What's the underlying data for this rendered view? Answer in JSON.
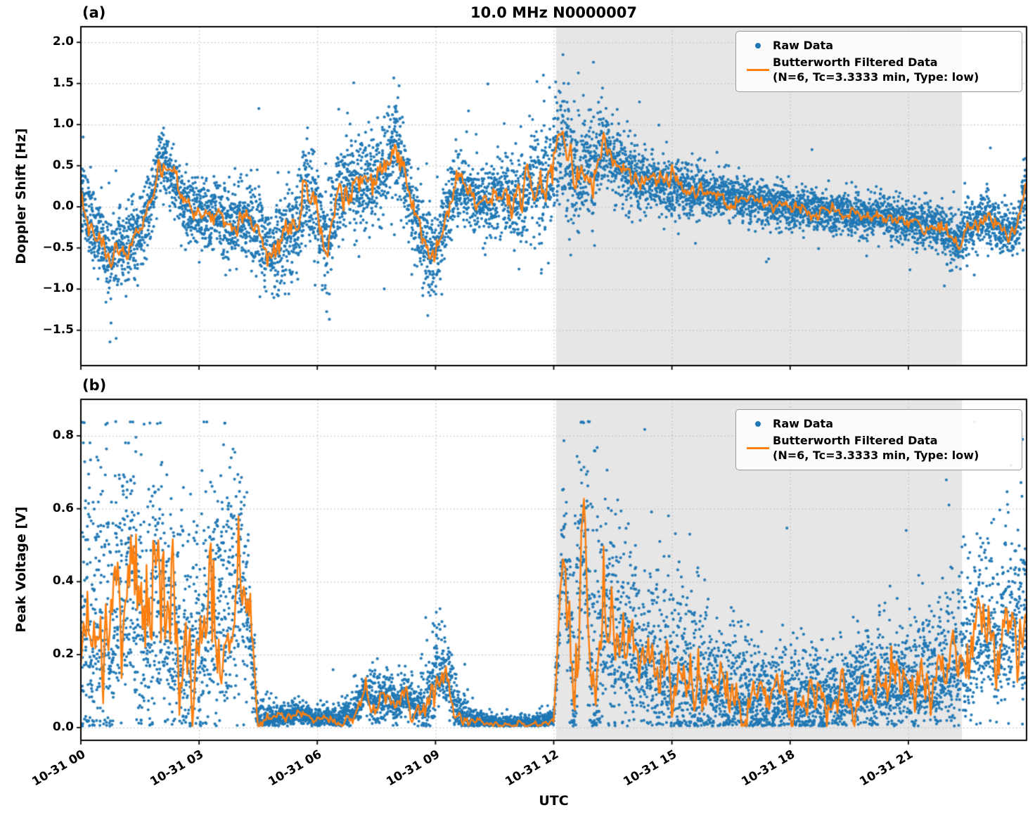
{
  "figure": {
    "background": "#ffffff"
  },
  "colors": {
    "raw": "#1f77b4",
    "filtered": "#ff7f0e",
    "shade": "#e6e6e6",
    "grid": "#c0c0c0",
    "spine": "#000000"
  },
  "legend": {
    "raw_label": "Raw Data",
    "filtered_label": "Butterworth Filtered Data",
    "filtered_params": "(N=6, Tc=3.3333 min, Type: low)"
  },
  "x_axis": {
    "date": "10-31",
    "range_hours": [
      0,
      24
    ],
    "tick_hours": [
      0,
      3,
      6,
      9,
      12,
      15,
      18,
      21
    ],
    "tick_labels": [
      "10-31 00",
      "10-31 03",
      "10-31 06",
      "10-31 09",
      "10-31 12",
      "10-31 15",
      "10-31 18",
      "10-31 21"
    ]
  },
  "shaded_region_hours": [
    12.06,
    22.36
  ],
  "chart_data": [
    {
      "panel_label": "(a)",
      "type": "scatter",
      "title": "10.0 MHz N0000007",
      "ylabel": "Doppler Shift [Hz]",
      "ylim": [
        -1.93,
        2.19
      ],
      "clip": [
        -1.8,
        2.03
      ],
      "ytick_values": [
        2.0,
        1.5,
        1.0,
        0.5,
        0.0,
        -0.5,
        -1.0,
        -1.5
      ],
      "ytick_labels": [
        "2.0",
        "1.5",
        "1.0",
        "0.5",
        "0.0",
        "−0.5",
        "−1.0",
        "−1.5"
      ],
      "series": [
        {
          "name": "Raw Data",
          "style": "scatter",
          "color": "#1f77b4"
        },
        {
          "name": "Butterworth Filtered Data (N=6, Tc=3.3333 min, Type: low)",
          "style": "line",
          "color": "#ff7f0e"
        }
      ],
      "x_start": 0,
      "x_step": 0.25,
      "filtered_values": [
        0.15,
        -0.2,
        -0.45,
        -0.65,
        -0.5,
        -0.45,
        -0.3,
        -0.05,
        0.55,
        0.45,
        0.15,
        0,
        -0.05,
        -0.15,
        -0.08,
        -0.25,
        -0.2,
        -0.1,
        -0.3,
        -0.55,
        -0.45,
        -0.3,
        -0.2,
        0.3,
        -0.1,
        -0.55,
        0.2,
        0.3,
        0.2,
        0.3,
        0.35,
        0.5,
        0.78,
        0.3,
        -0.15,
        -0.5,
        -0.6,
        -0.1,
        0.25,
        0.2,
        0.1,
        0.05,
        0.1,
        0.15,
        0.1,
        0.15,
        0.25,
        0.3,
        0.5,
        0.8,
        0.35,
        0.5,
        0.4,
        0.8,
        0.55,
        0.45,
        0.38,
        0.32,
        0.3,
        0.28,
        0.25,
        0.22,
        0.2,
        0.18,
        0.15,
        0.12,
        0.1,
        0.1,
        0.08,
        0.05,
        0.05,
        0.02,
        0,
        0,
        -0.02,
        -0.05,
        -0.05,
        -0.05,
        -0.08,
        -0.1,
        -0.1,
        -0.1,
        -0.12,
        -0.15,
        -0.15,
        -0.18,
        -0.2,
        -0.25,
        -0.35,
        -0.45,
        -0.25,
        -0.2,
        -0.1,
        -0.25,
        -0.3,
        -0.25,
        0.25
      ],
      "raw_spread_step": 1,
      "raw_spread": [
        0.25,
        0.25,
        0.18,
        0.2,
        0.22,
        0.3,
        0.3,
        0.25,
        0.3,
        0.25,
        0.2,
        0.25,
        0.4,
        0.3,
        0.2,
        0.17,
        0.14,
        0.13,
        0.12,
        0.12,
        0.12,
        0.13,
        0.15,
        0.15,
        0.15
      ],
      "skew_up": 1.0,
      "line_wiggle": 0.3
    },
    {
      "panel_label": "(b)",
      "type": "scatter",
      "xlabel": "UTC",
      "ylabel": "Peak Voltage [V]",
      "ylim": [
        -0.035,
        0.9
      ],
      "clip": [
        0.004,
        0.84
      ],
      "ytick_values": [
        0.8,
        0.6,
        0.4,
        0.2,
        0.0
      ],
      "ytick_labels": [
        "0.8",
        "0.6",
        "0.4",
        "0.2",
        "0.0"
      ],
      "series": [
        {
          "name": "Raw Data",
          "style": "scatter",
          "color": "#1f77b4"
        },
        {
          "name": "Butterworth Filtered Data (N=6, Tc=3.3333 min, Type: low)",
          "style": "line",
          "color": "#ff7f0e"
        }
      ],
      "x_start": 0,
      "x_step": 0.25,
      "filtered_values": [
        0.3,
        0.22,
        0.3,
        0.2,
        0.33,
        0.4,
        0.28,
        0.25,
        0.36,
        0.28,
        0.17,
        0.23,
        0.18,
        0.26,
        0.32,
        0.3,
        0.4,
        0.3,
        0.02,
        0.02,
        0.03,
        0.03,
        0.04,
        0.03,
        0.02,
        0.03,
        0.02,
        0.03,
        0.05,
        0.1,
        0.06,
        0.09,
        0.05,
        0.09,
        0.05,
        0.06,
        0.14,
        0.15,
        0.06,
        0.03,
        0.02,
        0.015,
        0.01,
        0.01,
        0.01,
        0.01,
        0.01,
        0.015,
        0.02,
        0.5,
        0.12,
        0.58,
        0.12,
        0.3,
        0.25,
        0.22,
        0.19,
        0.16,
        0.17,
        0.14,
        0.15,
        0.12,
        0.13,
        0.11,
        0.1,
        0.1,
        0.09,
        0.09,
        0.08,
        0.09,
        0.08,
        0.08,
        0.08,
        0.07,
        0.08,
        0.08,
        0.09,
        0.08,
        0.09,
        0.1,
        0.1,
        0.11,
        0.1,
        0.12,
        0.12,
        0.13,
        0.14,
        0.13,
        0.15,
        0.17,
        0.2,
        0.25,
        0.3,
        0.22,
        0.28,
        0.26,
        0.3
      ],
      "raw_spread_step": 0.5,
      "raw_spread": [
        0.16,
        0.16,
        0.15,
        0.16,
        0.15,
        0.13,
        0.14,
        0.16,
        0.15,
        0.02,
        0.012,
        0.012,
        0.01,
        0.012,
        0.02,
        0.03,
        0.025,
        0.02,
        0.05,
        0.03,
        0.01,
        0.008,
        0.008,
        0.008,
        0.01,
        0.14,
        0.15,
        0.12,
        0.1,
        0.09,
        0.09,
        0.08,
        0.07,
        0.07,
        0.06,
        0.05,
        0.05,
        0.05,
        0.05,
        0.05,
        0.06,
        0.06,
        0.06,
        0.07,
        0.07,
        0.08,
        0.09,
        0.09,
        0.1
      ],
      "skew_up": 1.5,
      "line_wiggle": 0.55
    }
  ]
}
